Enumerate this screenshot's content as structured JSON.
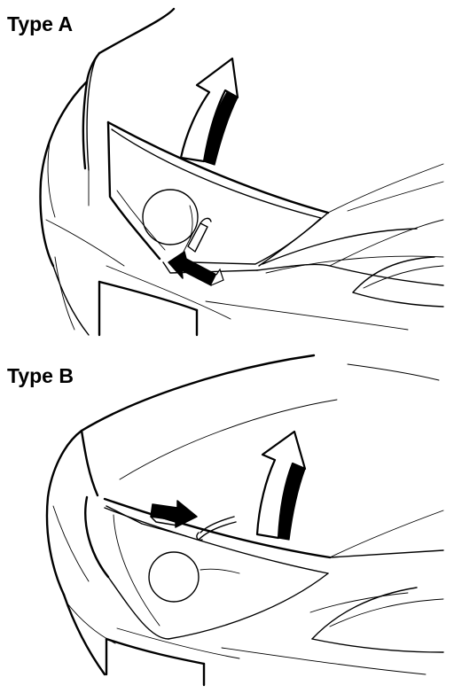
{
  "panels": [
    {
      "label": "Type A"
    },
    {
      "label": "Type B"
    }
  ],
  "colors": {
    "line": "#000000",
    "background": "#ffffff",
    "arrow_fill": "#ffffff",
    "push_arrow_fill": "#000000"
  },
  "icons": {
    "lift_arrow": "curved-up-arrow-icon",
    "push_arrow": "push-arrow-icon",
    "latch": "hood-latch-lever-icon"
  }
}
